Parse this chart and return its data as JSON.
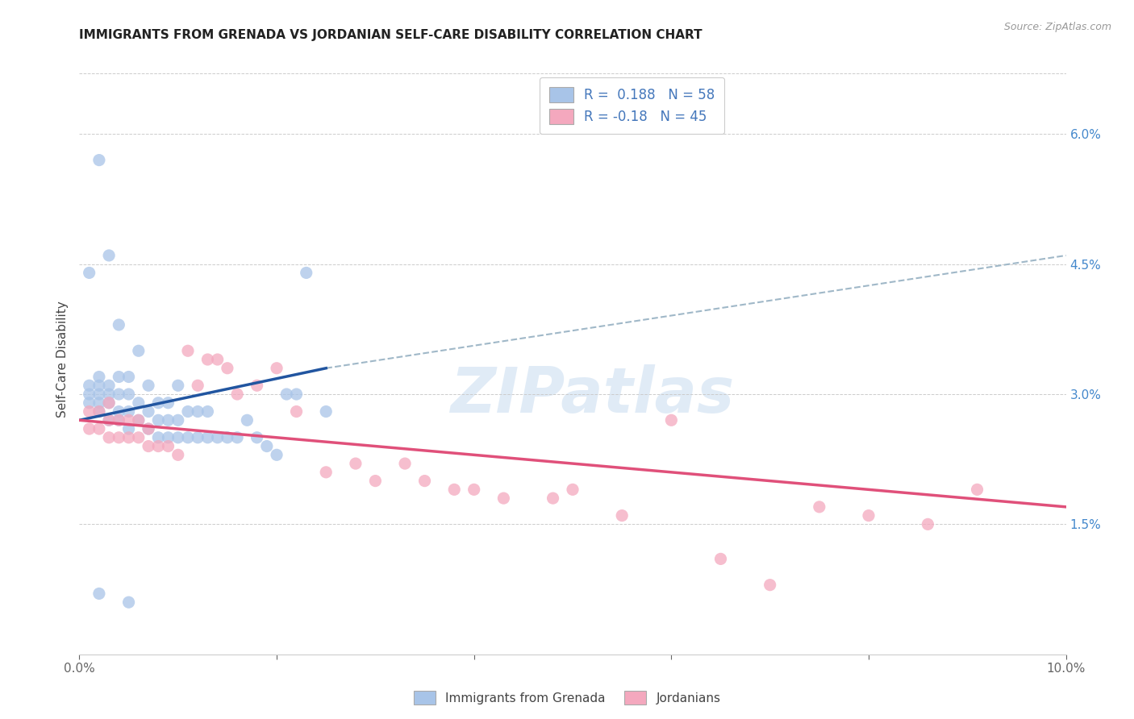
{
  "title": "IMMIGRANTS FROM GRENADA VS JORDANIAN SELF-CARE DISABILITY CORRELATION CHART",
  "source": "Source: ZipAtlas.com",
  "ylabel": "Self-Care Disability",
  "ytick_labels": [
    "1.5%",
    "3.0%",
    "4.5%",
    "6.0%"
  ],
  "ytick_values": [
    0.015,
    0.03,
    0.045,
    0.06
  ],
  "xlim": [
    0.0,
    0.1
  ],
  "ylim": [
    0.0,
    0.068
  ],
  "legend_labels": [
    "Immigrants from Grenada",
    "Jordanians"
  ],
  "r_blue": 0.188,
  "n_blue": 58,
  "r_pink": -0.18,
  "n_pink": 45,
  "blue_color": "#A8C4E8",
  "pink_color": "#F4A8BE",
  "blue_line_color": "#2155A0",
  "pink_line_color": "#E0507A",
  "dashed_line_color": "#A0B8C8",
  "background_color": "#FFFFFF",
  "watermark": "ZIPatlas",
  "blue_scatter_x": [
    0.001,
    0.001,
    0.001,
    0.002,
    0.002,
    0.002,
    0.002,
    0.002,
    0.003,
    0.003,
    0.003,
    0.003,
    0.004,
    0.004,
    0.004,
    0.004,
    0.005,
    0.005,
    0.005,
    0.005,
    0.006,
    0.006,
    0.006,
    0.007,
    0.007,
    0.007,
    0.008,
    0.008,
    0.008,
    0.009,
    0.009,
    0.009,
    0.01,
    0.01,
    0.01,
    0.011,
    0.011,
    0.012,
    0.012,
    0.013,
    0.013,
    0.014,
    0.015,
    0.016,
    0.017,
    0.018,
    0.019,
    0.02,
    0.021,
    0.022,
    0.023,
    0.025,
    0.002,
    0.003,
    0.001,
    0.004,
    0.002,
    0.005
  ],
  "blue_scatter_y": [
    0.029,
    0.03,
    0.031,
    0.028,
    0.029,
    0.03,
    0.031,
    0.032,
    0.027,
    0.029,
    0.03,
    0.031,
    0.027,
    0.028,
    0.03,
    0.032,
    0.026,
    0.028,
    0.03,
    0.032,
    0.027,
    0.029,
    0.035,
    0.026,
    0.028,
    0.031,
    0.025,
    0.027,
    0.029,
    0.025,
    0.027,
    0.029,
    0.025,
    0.027,
    0.031,
    0.025,
    0.028,
    0.025,
    0.028,
    0.025,
    0.028,
    0.025,
    0.025,
    0.025,
    0.027,
    0.025,
    0.024,
    0.023,
    0.03,
    0.03,
    0.044,
    0.028,
    0.057,
    0.046,
    0.044,
    0.038,
    0.007,
    0.006
  ],
  "pink_scatter_x": [
    0.001,
    0.001,
    0.002,
    0.002,
    0.003,
    0.003,
    0.003,
    0.004,
    0.004,
    0.005,
    0.005,
    0.006,
    0.006,
    0.007,
    0.007,
    0.008,
    0.009,
    0.01,
    0.011,
    0.012,
    0.013,
    0.014,
    0.015,
    0.016,
    0.018,
    0.02,
    0.022,
    0.025,
    0.028,
    0.03,
    0.033,
    0.035,
    0.038,
    0.04,
    0.043,
    0.048,
    0.05,
    0.055,
    0.06,
    0.065,
    0.07,
    0.075,
    0.08,
    0.086,
    0.091
  ],
  "pink_scatter_y": [
    0.026,
    0.028,
    0.026,
    0.028,
    0.025,
    0.027,
    0.029,
    0.025,
    0.027,
    0.025,
    0.027,
    0.025,
    0.027,
    0.024,
    0.026,
    0.024,
    0.024,
    0.023,
    0.035,
    0.031,
    0.034,
    0.034,
    0.033,
    0.03,
    0.031,
    0.033,
    0.028,
    0.021,
    0.022,
    0.02,
    0.022,
    0.02,
    0.019,
    0.019,
    0.018,
    0.018,
    0.019,
    0.016,
    0.027,
    0.011,
    0.008,
    0.017,
    0.016,
    0.015,
    0.019
  ],
  "blue_line_x": [
    0.0,
    0.025
  ],
  "blue_line_y": [
    0.027,
    0.033
  ],
  "pink_line_x": [
    0.0,
    0.1
  ],
  "pink_line_y": [
    0.027,
    0.017
  ],
  "dashed_line_x": [
    0.025,
    0.1
  ],
  "dashed_line_y": [
    0.033,
    0.046
  ]
}
